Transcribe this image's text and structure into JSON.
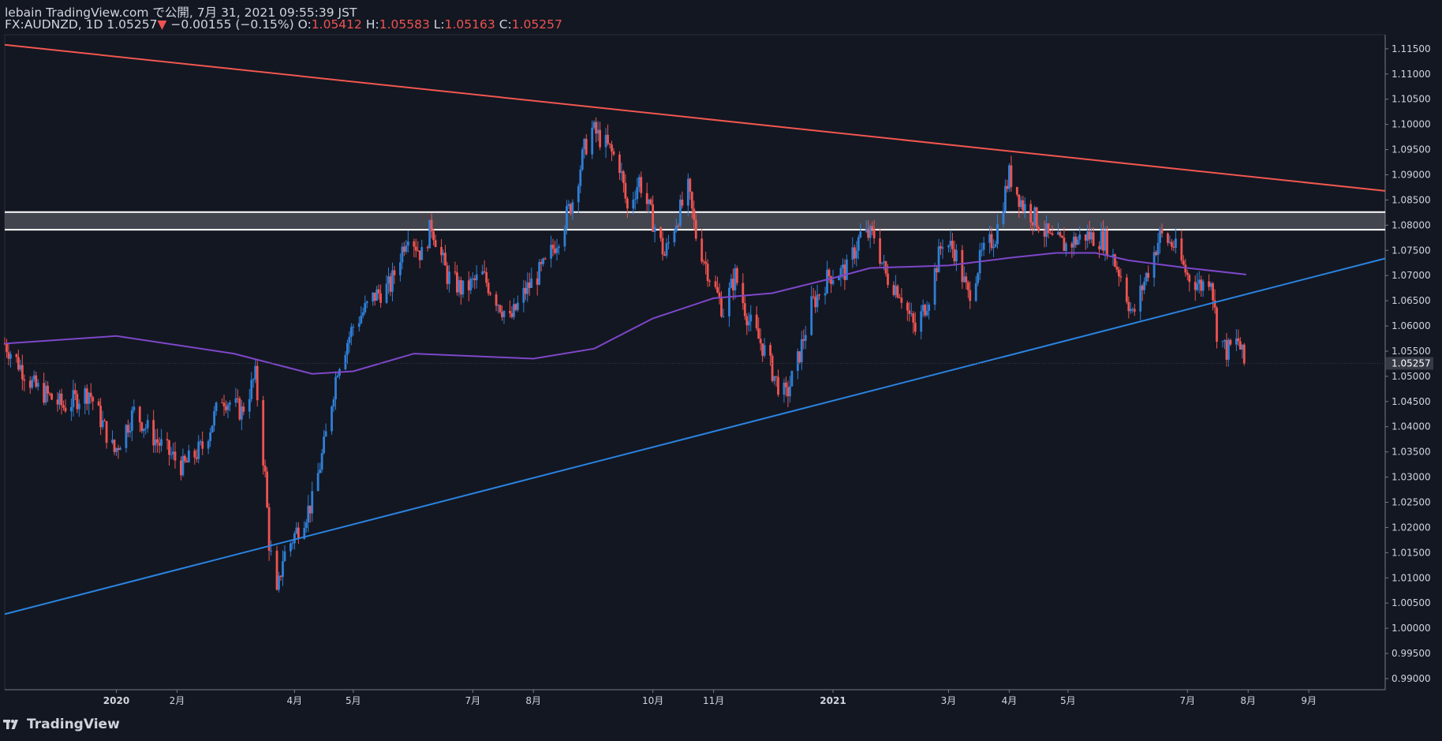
{
  "header": {
    "line1": "lebain TradingView.com で公開, 7月 31, 2021 09:55:39 JST",
    "symbol": "FX:AUDNZD, 1D",
    "last": "1.05257",
    "change": "−0.00155 (−0.15%)",
    "o_label": "O:",
    "o_value": "1.05412",
    "h_label": "H:",
    "h_value": "1.05583",
    "l_label": "L:",
    "l_value": "1.05163",
    "c_label": "C:",
    "c_value": "1.05257"
  },
  "footer": {
    "logo_text": "TradingView"
  },
  "colors": {
    "background": "#131722",
    "up": "#2f7fd6",
    "down": "#ef5350",
    "ma": "#7e47c9",
    "resistance": "#f2574f",
    "support": "#2a83e0",
    "zone_line": "#ffffff",
    "price_label_bg": "#363a45"
  },
  "chart_data": {
    "type": "candlestick",
    "symbol": "FX:AUDNZD",
    "timeframe": "1D",
    "y_ticks": [
      1.115,
      1.11,
      1.105,
      1.1,
      1.095,
      1.09,
      1.085,
      1.08,
      1.075,
      1.07,
      1.065,
      1.06,
      1.055,
      1.05,
      1.045,
      1.04,
      1.035,
      1.03,
      1.025,
      1.02,
      1.015,
      1.01,
      1.005,
      1.0,
      0.995,
      0.99
    ],
    "y_range": [
      0.9878,
      1.1178
    ],
    "x_range": [
      "2019-11-05",
      "2021-10-10"
    ],
    "x_ticks": [
      {
        "label": "2020",
        "date": "2020-01-01"
      },
      {
        "label": "2月",
        "date": "2020-02-01"
      },
      {
        "label": "4月",
        "date": "2020-04-01"
      },
      {
        "label": "5月",
        "date": "2020-05-01"
      },
      {
        "label": "7月",
        "date": "2020-07-01"
      },
      {
        "label": "8月",
        "date": "2020-08-01"
      },
      {
        "label": "10月",
        "date": "2020-10-01"
      },
      {
        "label": "11月",
        "date": "2020-11-01"
      },
      {
        "label": "2021",
        "date": "2021-01-01"
      },
      {
        "label": "3月",
        "date": "2021-03-01"
      },
      {
        "label": "4月",
        "date": "2021-04-01"
      },
      {
        "label": "5月",
        "date": "2021-05-01"
      },
      {
        "label": "7月",
        "date": "2021-07-01"
      },
      {
        "label": "8月",
        "date": "2021-08-01"
      },
      {
        "label": "9月",
        "date": "2021-09-01"
      }
    ],
    "last_price": 1.05257,
    "last_price_label": "1.05257",
    "close_waypoints": [
      [
        "2019-11-05",
        1.0565
      ],
      [
        "2019-11-20",
        1.048
      ],
      [
        "2019-12-05",
        1.044
      ],
      [
        "2019-12-18",
        1.047
      ],
      [
        "2019-12-31",
        1.035
      ],
      [
        "2020-01-10",
        1.043
      ],
      [
        "2020-01-22",
        1.037
      ],
      [
        "2020-02-04",
        1.032
      ],
      [
        "2020-02-14",
        1.036
      ],
      [
        "2020-02-24",
        1.046
      ],
      [
        "2020-03-05",
        1.043
      ],
      [
        "2020-03-12",
        1.05
      ],
      [
        "2020-03-17",
        1.03
      ],
      [
        "2020-03-19",
        1.017
      ],
      [
        "2020-03-23",
        1.006
      ],
      [
        "2020-03-26",
        1.014
      ],
      [
        "2020-04-03",
        1.02
      ],
      [
        "2020-04-10",
        1.025
      ],
      [
        "2020-04-16",
        1.036
      ],
      [
        "2020-04-23",
        1.052
      ],
      [
        "2020-05-01",
        1.06
      ],
      [
        "2020-05-12",
        1.066
      ],
      [
        "2020-05-20",
        1.068
      ],
      [
        "2020-05-29",
        1.079
      ],
      [
        "2020-06-05",
        1.074
      ],
      [
        "2020-06-10",
        1.08
      ],
      [
        "2020-06-18",
        1.07
      ],
      [
        "2020-06-26",
        1.067
      ],
      [
        "2020-07-06",
        1.07
      ],
      [
        "2020-07-20",
        1.061
      ],
      [
        "2020-07-28",
        1.067
      ],
      [
        "2020-08-07",
        1.072
      ],
      [
        "2020-08-14",
        1.078
      ],
      [
        "2020-08-21",
        1.085
      ],
      [
        "2020-08-27",
        1.095
      ],
      [
        "2020-08-31",
        1.099
      ],
      [
        "2020-09-07",
        1.096
      ],
      [
        "2020-09-14",
        1.092
      ],
      [
        "2020-09-18",
        1.083
      ],
      [
        "2020-09-24",
        1.089
      ],
      [
        "2020-09-30",
        1.082
      ],
      [
        "2020-10-07",
        1.074
      ],
      [
        "2020-10-12",
        1.08
      ],
      [
        "2020-10-19",
        1.087
      ],
      [
        "2020-10-23",
        1.078
      ],
      [
        "2020-10-30",
        1.07
      ],
      [
        "2020-11-06",
        1.063
      ],
      [
        "2020-11-12",
        1.07
      ],
      [
        "2020-11-19",
        1.061
      ],
      [
        "2020-11-26",
        1.056
      ],
      [
        "2020-12-03",
        1.049
      ],
      [
        "2020-12-08",
        1.046
      ],
      [
        "2020-12-14",
        1.053
      ],
      [
        "2020-12-21",
        1.064
      ],
      [
        "2020-12-30",
        1.07
      ],
      [
        "2021-01-08",
        1.071
      ],
      [
        "2021-01-15",
        1.078
      ],
      [
        "2021-01-22",
        1.078
      ],
      [
        "2021-01-28",
        1.07
      ],
      [
        "2021-02-04",
        1.067
      ],
      [
        "2021-02-12",
        1.059
      ],
      [
        "2021-02-19",
        1.066
      ],
      [
        "2021-02-26",
        1.077
      ],
      [
        "2021-03-04",
        1.075
      ],
      [
        "2021-03-11",
        1.066
      ],
      [
        "2021-03-18",
        1.074
      ],
      [
        "2021-03-25",
        1.078
      ],
      [
        "2021-04-01",
        1.09
      ],
      [
        "2021-04-08",
        1.084
      ],
      [
        "2021-04-15",
        1.081
      ],
      [
        "2021-04-22",
        1.077
      ],
      [
        "2021-04-30",
        1.076
      ],
      [
        "2021-05-10",
        1.078
      ],
      [
        "2021-05-20",
        1.077
      ],
      [
        "2021-05-28",
        1.07
      ],
      [
        "2021-06-03",
        1.062
      ],
      [
        "2021-06-10",
        1.07
      ],
      [
        "2021-06-17",
        1.078
      ],
      [
        "2021-06-24",
        1.076
      ],
      [
        "2021-07-01",
        1.07
      ],
      [
        "2021-07-08",
        1.068
      ],
      [
        "2021-07-13",
        1.07
      ],
      [
        "2021-07-16",
        1.059
      ],
      [
        "2021-07-21",
        1.055
      ],
      [
        "2021-07-27",
        1.057
      ],
      [
        "2021-07-30",
        1.0526
      ]
    ],
    "moving_average": [
      [
        "2019-11-05",
        1.0565
      ],
      [
        "2020-01-01",
        1.058
      ],
      [
        "2020-03-01",
        1.0545
      ],
      [
        "2020-04-10",
        1.0505
      ],
      [
        "2020-05-01",
        1.051
      ],
      [
        "2020-06-01",
        1.0545
      ],
      [
        "2020-07-01",
        1.054
      ],
      [
        "2020-08-01",
        1.0535
      ],
      [
        "2020-09-01",
        1.0555
      ],
      [
        "2020-10-01",
        1.0615
      ],
      [
        "2020-11-01",
        1.0655
      ],
      [
        "2020-12-01",
        1.0665
      ],
      [
        "2021-01-01",
        1.0695
      ],
      [
        "2021-01-20",
        1.0715
      ],
      [
        "2021-03-01",
        1.072
      ],
      [
        "2021-04-01",
        1.0735
      ],
      [
        "2021-04-25",
        1.0745
      ],
      [
        "2021-05-15",
        1.0745
      ],
      [
        "2021-06-01",
        1.073
      ],
      [
        "2021-07-01",
        1.0715
      ],
      [
        "2021-07-31",
        1.0702
      ]
    ],
    "trendlines": [
      {
        "name": "resistance",
        "from": [
          "2019-11-05",
          1.1158
        ],
        "to": [
          "2021-10-10",
          1.0868
        ]
      },
      {
        "name": "support",
        "from": [
          "2019-11-05",
          1.0028
        ],
        "to": [
          "2021-10-10",
          1.0734
        ]
      }
    ],
    "zone": {
      "top": 1.0826,
      "bottom": 1.0791
    }
  }
}
